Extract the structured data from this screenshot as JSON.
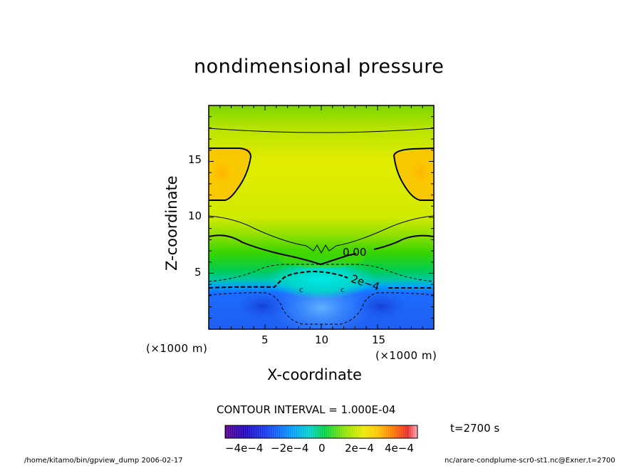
{
  "page": {
    "title": "nondimensional pressure",
    "contour_interval": "CONTOUR INTERVAL = 1.000E-04",
    "time_label": "t=2700 s",
    "footer_left": "/home/kitamo/bin/gpview_dump  2006-02-17",
    "footer_right": "nc/arare-condplume-scr0-st1.nc@Exner,t=2700"
  },
  "chart_data": {
    "type": "heatmap",
    "title": "nondimensional pressure",
    "xlabel": "X-coordinate",
    "ylabel": "Z-coordinate",
    "x_unit": "(×1000 m)",
    "y_unit": "(×1000 m)",
    "xlim": [
      0,
      20
    ],
    "ylim": [
      0,
      20
    ],
    "x_ticks": [
      5,
      10,
      15
    ],
    "y_ticks": [
      5,
      10,
      15
    ],
    "x_tick_labels": [
      "5",
      "10",
      "15"
    ],
    "y_tick_labels": [
      "5",
      "10",
      "15"
    ],
    "color_range": [
      -0.0005,
      0.0005
    ],
    "colorbar_ticks": [
      -0.0004,
      -0.0002,
      0,
      0.0002,
      0.0004
    ],
    "colorbar_tick_labels": [
      "−4e−4",
      "−2e−4",
      "0",
      "2e−4",
      "4e−4"
    ],
    "contour_interval": 0.0001,
    "contour_labels": [
      "0.00",
      "2e−4"
    ],
    "contour_markers": [
      "c",
      "c"
    ],
    "field_samples": [
      {
        "x": 2,
        "z": 1.8,
        "value": -0.00042
      },
      {
        "x": 10,
        "z": 2.5,
        "value": -0.00028
      },
      {
        "x": 10,
        "z": 4.5,
        "value": -0.00018
      },
      {
        "x": 10,
        "z": 7,
        "value": 4e-05
      },
      {
        "x": 2,
        "z": 6,
        "value": 2e-05
      },
      {
        "x": 10,
        "z": 10,
        "value": 0.0001
      },
      {
        "x": 10,
        "z": 13,
        "value": 0.00017
      },
      {
        "x": 2,
        "z": 13.8,
        "value": 0.00023
      },
      {
        "x": 18,
        "z": 13.8,
        "value": 0.00023
      },
      {
        "x": 10,
        "z": 18.5,
        "value": 0.0001
      }
    ],
    "grid": false
  },
  "colors": {
    "background": "#ffffff",
    "text": "#000000"
  }
}
